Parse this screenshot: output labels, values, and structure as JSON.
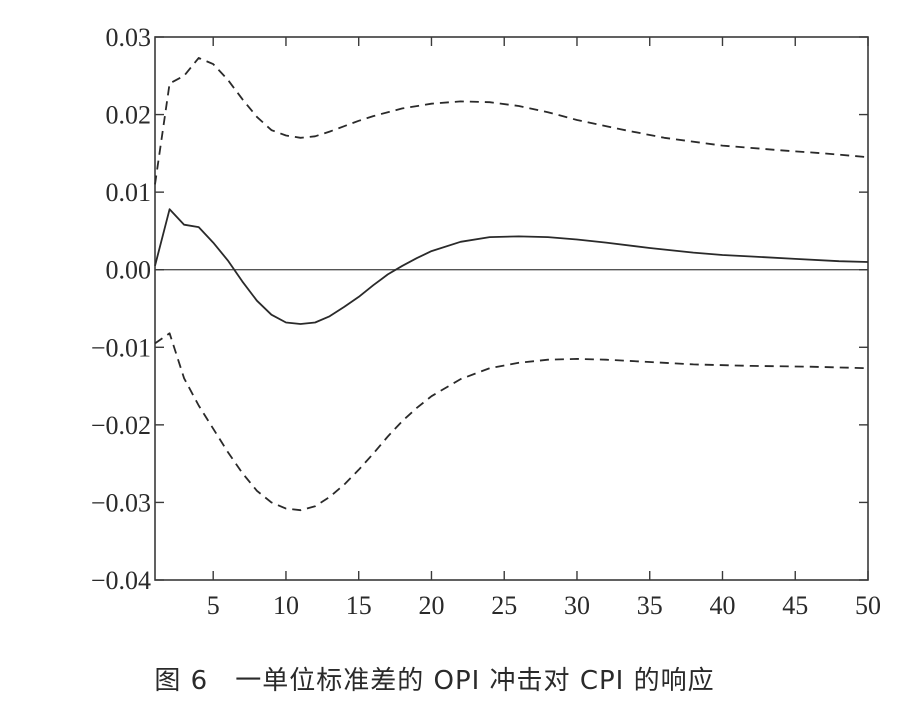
{
  "caption": "图 6　一单位标准差的 OPI 冲击对 CPI 的响应",
  "chart_data": {
    "type": "line",
    "title": "图 6　一单位标准差的 OPI 冲击对 CPI 的响应",
    "xlabel": "",
    "ylabel": "",
    "xlim": [
      1,
      50
    ],
    "ylim": [
      -0.04,
      0.03
    ],
    "x_ticks": [
      5,
      10,
      15,
      20,
      25,
      30,
      35,
      40,
      45,
      50
    ],
    "x_tick_labels": [
      "5",
      "10",
      "15",
      "20",
      "25",
      "30",
      "35",
      "40",
      "45",
      "50"
    ],
    "y_ticks": [
      0.03,
      0.02,
      0.01,
      0.0,
      -0.01,
      -0.02,
      -0.03,
      -0.04
    ],
    "y_tick_labels": [
      "0.03",
      "0.02",
      "0.01",
      "0.00",
      "−0.01",
      "−0.02",
      "−0.03",
      "−0.04"
    ],
    "grid": false,
    "zero_line": true,
    "series": [
      {
        "style": "solid",
        "color": "#2a2a2a",
        "x": [
          1,
          2,
          3,
          4,
          5,
          6,
          7,
          8,
          9,
          10,
          11,
          12,
          13,
          14,
          15,
          16,
          17,
          18,
          19,
          20,
          22,
          24,
          26,
          28,
          30,
          32,
          35,
          38,
          40,
          42,
          45,
          48,
          50
        ],
        "y": [
          0.0005,
          0.0078,
          0.0058,
          0.0055,
          0.0035,
          0.0012,
          -0.0015,
          -0.004,
          -0.0058,
          -0.0068,
          -0.007,
          -0.0068,
          -0.006,
          -0.0048,
          -0.0035,
          -0.002,
          -0.0006,
          0.0005,
          0.0015,
          0.0024,
          0.0036,
          0.0042,
          0.0043,
          0.0042,
          0.0039,
          0.0035,
          0.0028,
          0.0022,
          0.0019,
          0.0017,
          0.0014,
          0.0011,
          0.001
        ]
      },
      {
        "style": "dashed",
        "color": "#2a2a2a",
        "x": [
          1,
          2,
          3,
          4,
          5,
          6,
          7,
          8,
          9,
          10,
          11,
          12,
          13,
          14,
          15,
          16,
          18,
          20,
          22,
          24,
          26,
          28,
          30,
          33,
          36,
          40,
          44,
          47,
          50
        ],
        "y": [
          0.011,
          0.024,
          0.025,
          0.0273,
          0.0265,
          0.0245,
          0.022,
          0.0197,
          0.018,
          0.0173,
          0.017,
          0.0172,
          0.0178,
          0.0185,
          0.0192,
          0.0198,
          0.0208,
          0.0214,
          0.0217,
          0.0216,
          0.0211,
          0.0203,
          0.0193,
          0.0181,
          0.017,
          0.016,
          0.0154,
          0.015,
          0.0145
        ]
      },
      {
        "style": "dashed",
        "color": "#2a2a2a",
        "x": [
          1,
          2,
          3,
          4,
          5,
          6,
          7,
          8,
          9,
          10,
          11,
          12,
          13,
          14,
          15,
          16,
          17,
          18,
          19,
          20,
          22,
          24,
          26,
          28,
          30,
          32,
          35,
          38,
          42,
          46,
          50
        ],
        "y": [
          -0.0095,
          -0.0082,
          -0.014,
          -0.0175,
          -0.0205,
          -0.0235,
          -0.0262,
          -0.0285,
          -0.03,
          -0.0308,
          -0.031,
          -0.0305,
          -0.0293,
          -0.0277,
          -0.0258,
          -0.0237,
          -0.0215,
          -0.0195,
          -0.0178,
          -0.0163,
          -0.0141,
          -0.0127,
          -0.012,
          -0.0116,
          -0.0115,
          -0.0116,
          -0.0119,
          -0.0122,
          -0.0124,
          -0.0125,
          -0.0127
        ]
      }
    ]
  }
}
